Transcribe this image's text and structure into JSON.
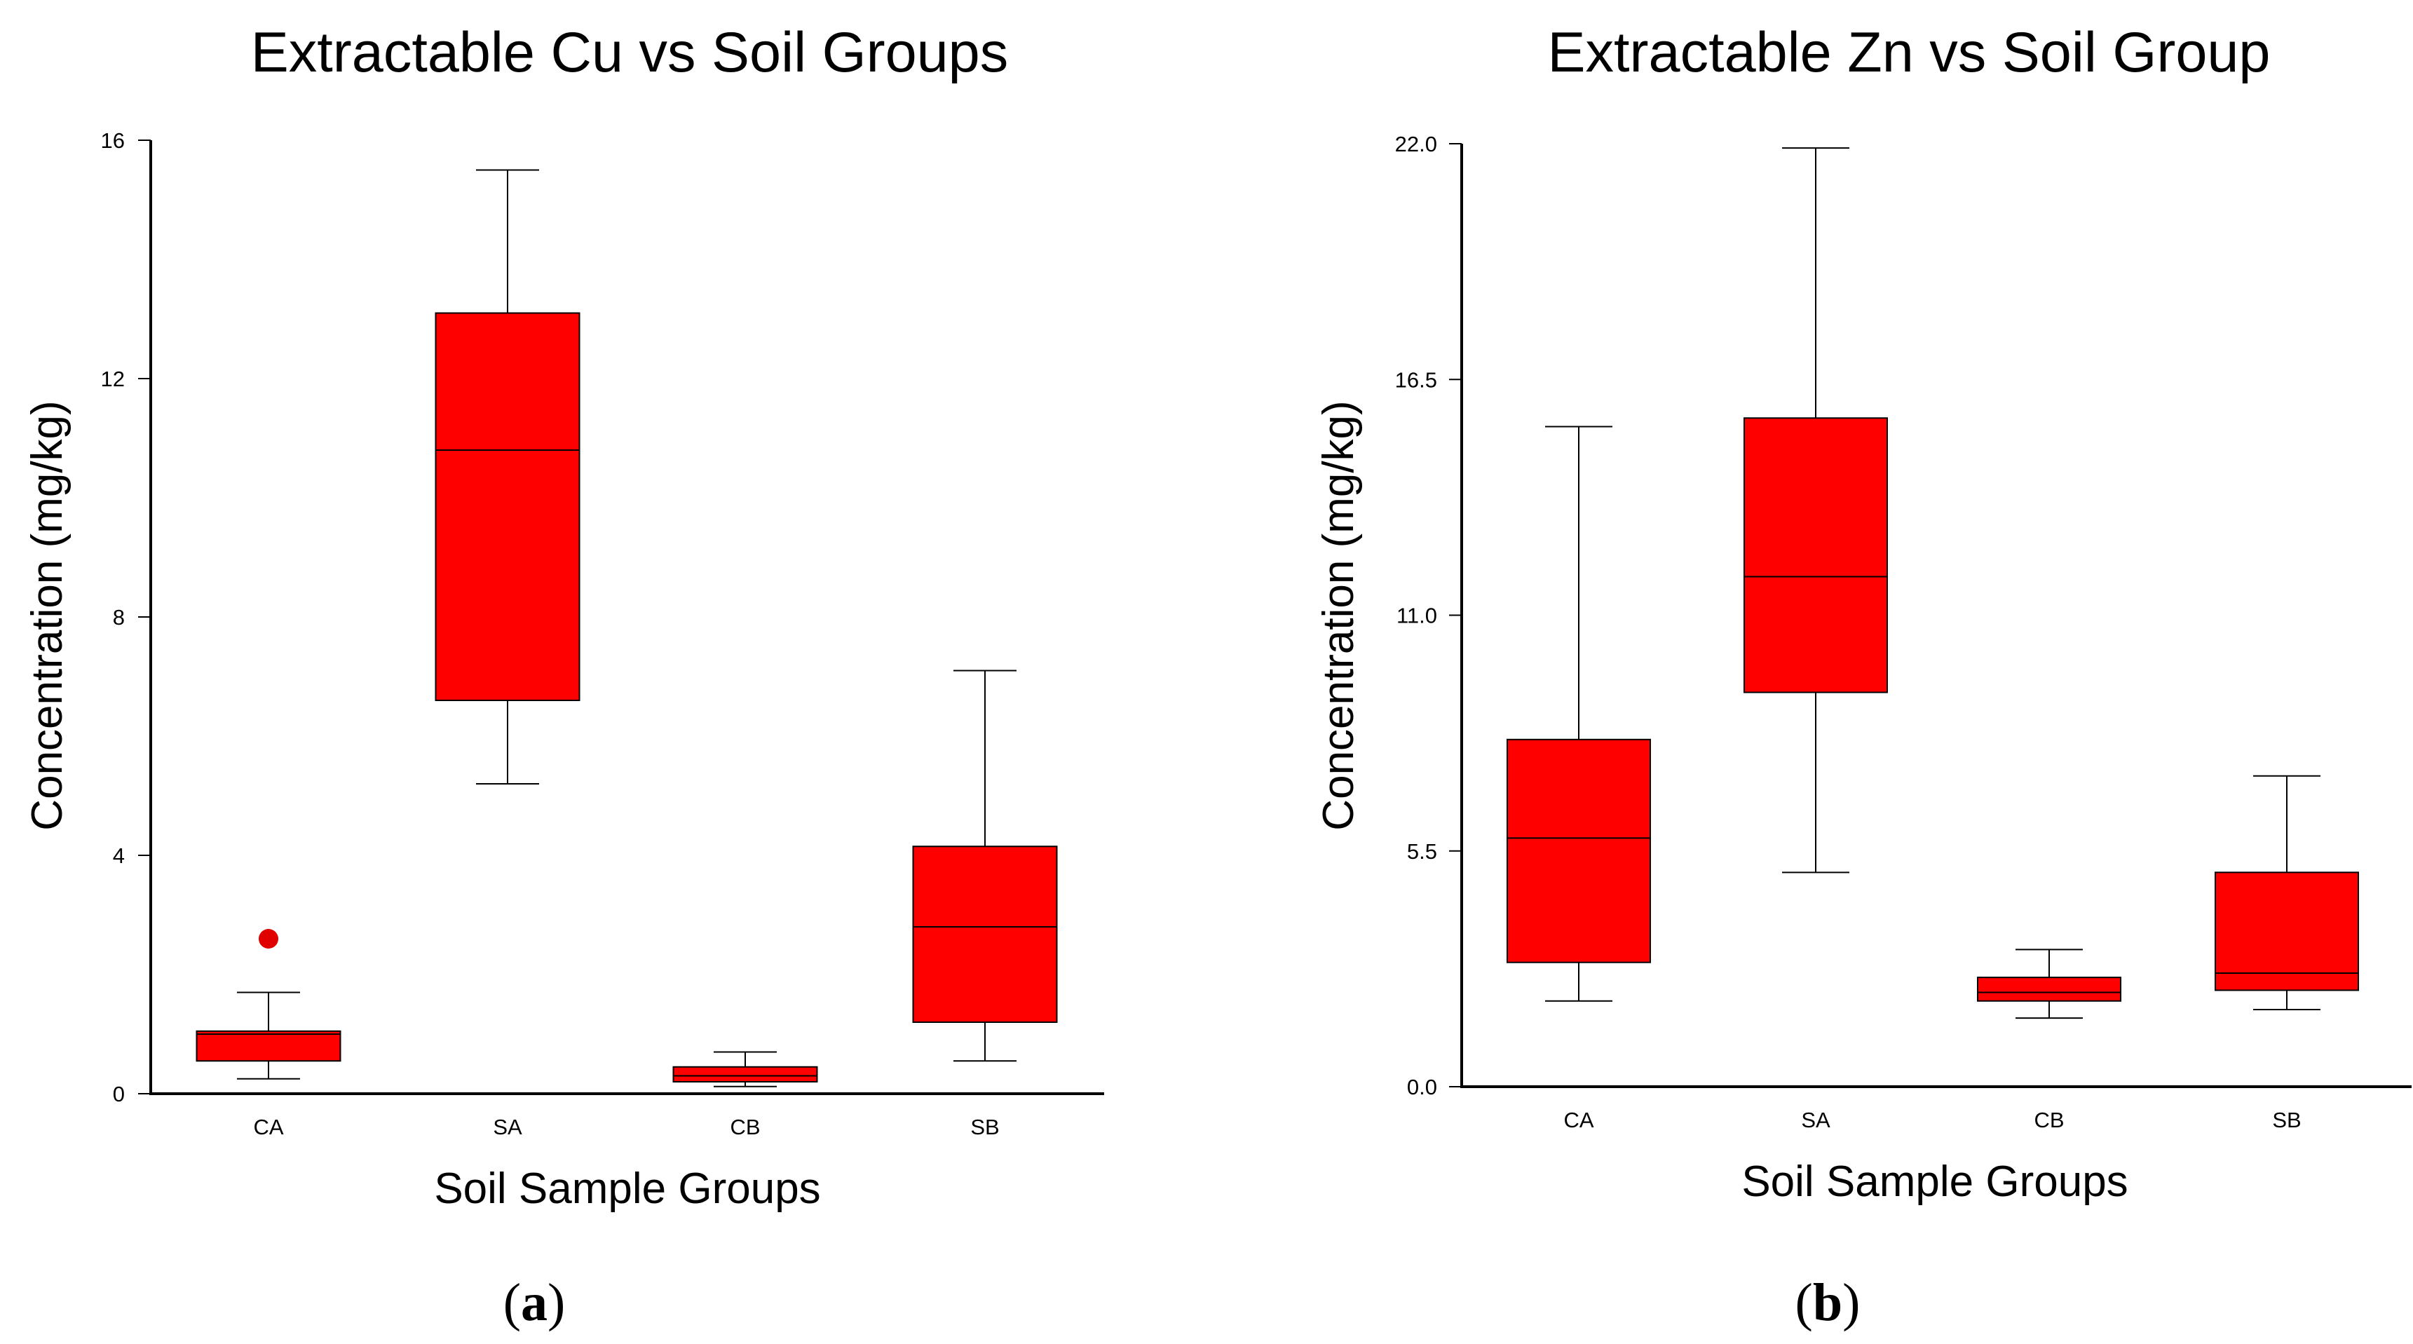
{
  "colors": {
    "box_fill": "#ff0000",
    "outlier": "#e00000",
    "axis": "#000000"
  },
  "chart_data": [
    {
      "type": "box",
      "panel_label": "a",
      "title": "Extractable Cu vs Soil Groups",
      "xlabel": "Soil Sample Groups",
      "ylabel": "Concentration (mg/kg)",
      "ylim": [
        0,
        16
      ],
      "yticks": [
        0,
        4,
        8,
        12,
        16
      ],
      "ytick_labels": [
        "0",
        "4",
        "8",
        "12",
        "16"
      ],
      "categories": [
        "CA",
        "SA",
        "CB",
        "SB"
      ],
      "boxes": [
        {
          "group": "CA",
          "min": 0.25,
          "q1": 0.55,
          "median": 1.0,
          "q3": 1.05,
          "max": 1.7,
          "outliers": [
            2.6
          ]
        },
        {
          "group": "SA",
          "min": 5.2,
          "q1": 6.6,
          "median": 10.8,
          "q3": 13.1,
          "max": 15.5,
          "outliers": []
        },
        {
          "group": "CB",
          "min": 0.12,
          "q1": 0.2,
          "median": 0.3,
          "q3": 0.45,
          "max": 0.7,
          "outliers": []
        },
        {
          "group": "SB",
          "min": 0.55,
          "q1": 1.2,
          "median": 2.8,
          "q3": 4.15,
          "max": 7.1,
          "outliers": []
        }
      ]
    },
    {
      "type": "box",
      "panel_label": "b",
      "title": "Extractable Zn vs Soil Group",
      "xlabel": "Soil Sample Groups",
      "ylabel": "Concentration (mg/kg)",
      "ylim": [
        0,
        22
      ],
      "yticks": [
        0,
        5.5,
        11,
        16.5,
        22
      ],
      "ytick_labels": [
        "0.0",
        "5.5",
        "11.0",
        "16.5",
        "22.0"
      ],
      "categories": [
        "CA",
        "SA",
        "CB",
        "SB"
      ],
      "boxes": [
        {
          "group": "CA",
          "min": 2.0,
          "q1": 2.9,
          "median": 5.8,
          "q3": 8.1,
          "max": 15.4,
          "outliers": []
        },
        {
          "group": "SA",
          "min": 5.0,
          "q1": 9.2,
          "median": 11.9,
          "q3": 15.6,
          "max": 21.9,
          "outliers": []
        },
        {
          "group": "CB",
          "min": 1.6,
          "q1": 2.0,
          "median": 2.2,
          "q3": 2.55,
          "max": 3.2,
          "outliers": []
        },
        {
          "group": "SB",
          "min": 1.8,
          "q1": 2.25,
          "median": 2.65,
          "q3": 5.0,
          "max": 7.25,
          "outliers": []
        }
      ]
    }
  ]
}
